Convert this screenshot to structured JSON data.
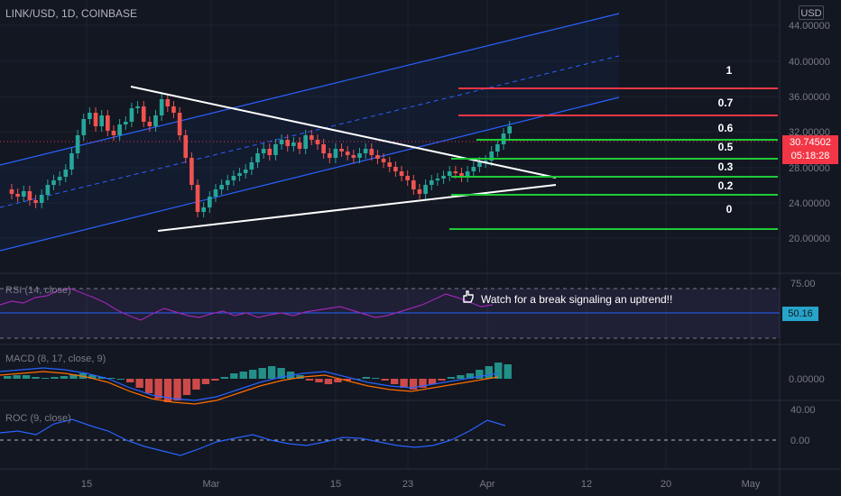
{
  "header": {
    "title": "LINK/USD, 1D, COINBASE",
    "currency_button": "USD"
  },
  "price_axis": {
    "ticks": [
      "44.00000",
      "40.00000",
      "36.00000",
      "32.00000",
      "28.00000",
      "24.00000",
      "20.00000"
    ],
    "current_price": "30.74502",
    "countdown": "05:18:28"
  },
  "time_axis": {
    "ticks": [
      "15",
      "Mar",
      "15",
      "23",
      "Apr",
      "12",
      "20",
      "May"
    ]
  },
  "fib_levels": [
    {
      "label": "1"
    },
    {
      "label": "0.7"
    },
    {
      "label": "0.6"
    },
    {
      "label": "0.5"
    },
    {
      "label": "0.3"
    },
    {
      "label": "0.2"
    },
    {
      "label": "0"
    }
  ],
  "rsi": {
    "title": "RSI (14, close)",
    "ticks": [
      "75.00"
    ],
    "value": "50.16"
  },
  "macd": {
    "title": "MACD (8, 17, close, 9)",
    "ticks": [
      "0.00000"
    ]
  },
  "roc": {
    "title": "ROC (9, close)",
    "ticks": [
      "40.00",
      "0.00"
    ]
  },
  "annotation": {
    "text": "Watch for a break signaling an uptrend!!"
  },
  "colors": {
    "background": "#131722",
    "up": "#26a69a",
    "down": "#ef5350",
    "channel": "#2962ff",
    "fib_top": "#f23645",
    "fib_bottom": "#1ecb36",
    "triangle": "#ffffff",
    "rsi_line": "#9c27b0",
    "macd_line": "#2962ff",
    "signal_line": "#ff6d00",
    "roc_line": "#2962ff"
  }
}
